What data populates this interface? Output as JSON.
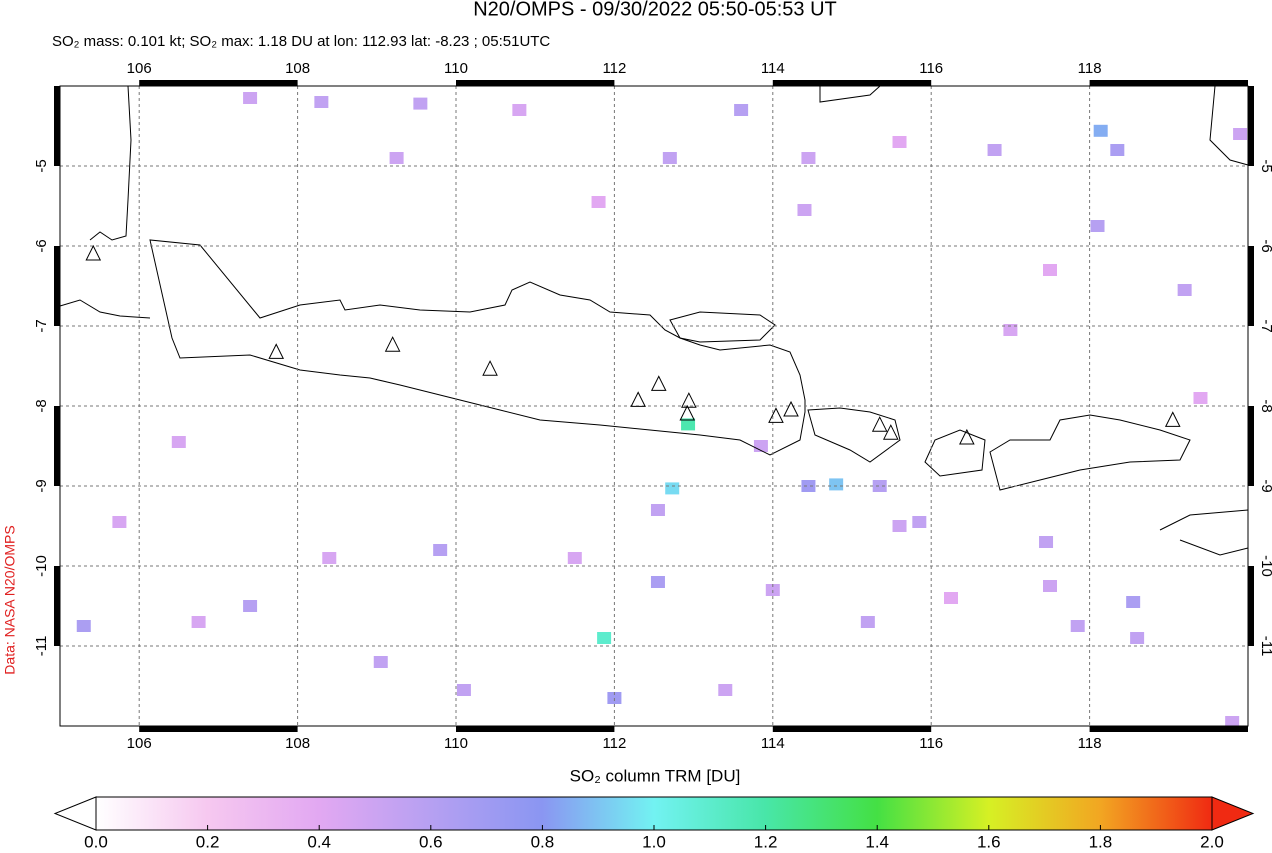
{
  "chart_data": {
    "type": "map",
    "title": "N20/OMPS - 09/30/2022 05:50-05:53 UT",
    "subtitle": "SO₂ mass: 0.101 kt; SO₂ max: 1.18 DU at lon: 112.93 lat: -8.23 ; 05:51UTC",
    "colorbar_label": "SO₂ column TRM [DU]",
    "credit": "Data: NASA N20/OMPS",
    "xlim": [
      105,
      120
    ],
    "ylim": [
      -12,
      -4
    ],
    "xticks": [
      106,
      108,
      110,
      112,
      114,
      116,
      118
    ],
    "yticks": [
      -5,
      -6,
      -7,
      -8,
      -9,
      -10,
      -11
    ],
    "grid": true,
    "colorbar": {
      "lim": [
        0,
        2
      ],
      "ticks": [
        {
          "value": 0,
          "label": "0.0"
        },
        0.2,
        0.4,
        0.6,
        0.8,
        {
          "value": 1,
          "label": "1.0"
        },
        1.2,
        1.4,
        1.6,
        1.8,
        {
          "value": 2,
          "label": "2.0"
        }
      ],
      "colors": [
        "#ffffff",
        "#f6c8f0",
        "#e2a8f2",
        "#b6a0f2",
        "#8a96f2",
        "#72f2f2",
        "#48e6a8",
        "#44e044",
        "#d6f024",
        "#f2a622",
        "#f02a12"
      ]
    },
    "pixels": {
      "lon": [
        107.4,
        108.3,
        109.55,
        113.6,
        112.7,
        118.35,
        116.8,
        109.25,
        118.14,
        119.9,
        118.1,
        119.2,
        114.45,
        114.4,
        112.73,
        114.8,
        114.45,
        115.35,
        112.93,
        111.87,
        112.0,
        112.55,
        112.55,
        105.3,
        109.8,
        107.4,
        109.05,
        110.1,
        118.55,
        117.85,
        118.6,
        115.85,
        115.6,
        114.0,
        115.2,
        117.45,
        117.5,
        119.8,
        117.0,
        113.85,
        113.4,
        111.5,
        108.4,
        106.5,
        105.75,
        106.75,
        116.25,
        119.4,
        110.8,
        111.8,
        115.6,
        117.5
      ],
      "lat": [
        -4.15,
        -4.2,
        -4.22,
        -4.3,
        -4.9,
        -4.8,
        -4.8,
        -4.9,
        -4.56,
        -4.6,
        -5.75,
        -6.55,
        -4.9,
        -5.55,
        -9.03,
        -8.98,
        -9.0,
        -9.0,
        -8.23,
        -10.9,
        -11.65,
        -10.2,
        -9.3,
        -10.75,
        -9.8,
        -10.5,
        -11.2,
        -11.55,
        -10.45,
        -10.75,
        -10.9,
        -9.45,
        -9.5,
        -10.3,
        -10.7,
        -9.7,
        -10.25,
        -11.95,
        -7.05,
        -8.5,
        -11.55,
        -9.9,
        -9.9,
        -8.45,
        -9.45,
        -10.7,
        -10.4,
        -7.9,
        -4.3,
        -5.45,
        -4.7,
        -6.3
      ],
      "values": [
        0.5,
        0.55,
        0.55,
        0.6,
        0.55,
        0.65,
        0.55,
        0.5,
        0.85,
        0.5,
        0.6,
        0.55,
        0.5,
        0.5,
        0.95,
        0.9,
        0.7,
        0.6,
        1.18,
        1.1,
        0.7,
        0.65,
        0.55,
        0.65,
        0.6,
        0.6,
        0.55,
        0.55,
        0.65,
        0.55,
        0.55,
        0.55,
        0.5,
        0.5,
        0.55,
        0.55,
        0.5,
        0.5,
        0.45,
        0.5,
        0.5,
        0.45,
        0.45,
        0.45,
        0.45,
        0.45,
        0.4,
        0.4,
        0.45,
        0.4,
        0.4,
        0.4
      ]
    },
    "volcanoes": {
      "lon": [
        105.42,
        107.73,
        109.2,
        110.43,
        112.3,
        112.56,
        112.94,
        112.92,
        114.04,
        114.23,
        115.35,
        115.49,
        116.45,
        119.05
      ],
      "lat": [
        -6.1,
        -7.33,
        -7.24,
        -7.54,
        -7.93,
        -7.73,
        -7.94,
        -8.1,
        -8.13,
        -8.05,
        -8.24,
        -8.34,
        -8.4,
        -8.18
      ]
    }
  }
}
